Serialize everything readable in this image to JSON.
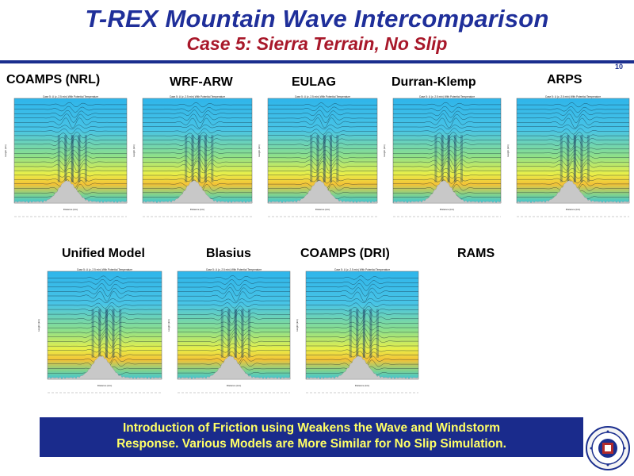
{
  "slide": {
    "title": "T-REX Mountain Wave Intercomparison",
    "subtitle": "Case 5:  Sierra Terrain, No Slip",
    "page_number": "10"
  },
  "models_row1": [
    {
      "label": "COAMPS (NRL)"
    },
    {
      "label": "WRF-ARW"
    },
    {
      "label": "EULAG"
    },
    {
      "label": "Durran-Klemp"
    },
    {
      "label": "ARPS"
    }
  ],
  "models_row2": [
    {
      "label": "Unified Model"
    },
    {
      "label": "Blasius"
    },
    {
      "label": "COAMPS (DRI)"
    },
    {
      "label": "RAMS"
    }
  ],
  "panel_text": {
    "header": "Case 5: U (z, 2.5 min) With Potential Temperature",
    "xlabel": "Distance (km)",
    "ylabel": "Height (km)"
  },
  "conclusion": {
    "line1": "Introduction of Friction using Weakens the Wave and Windstorm",
    "line2": "Response.  Various Models are More Similar for No Slip Simulation."
  },
  "colors": {
    "title": "#1f2f9a",
    "subtitle": "#a8182a",
    "banner_bg": "#1a2b8c",
    "banner_text": "#ffff66"
  }
}
